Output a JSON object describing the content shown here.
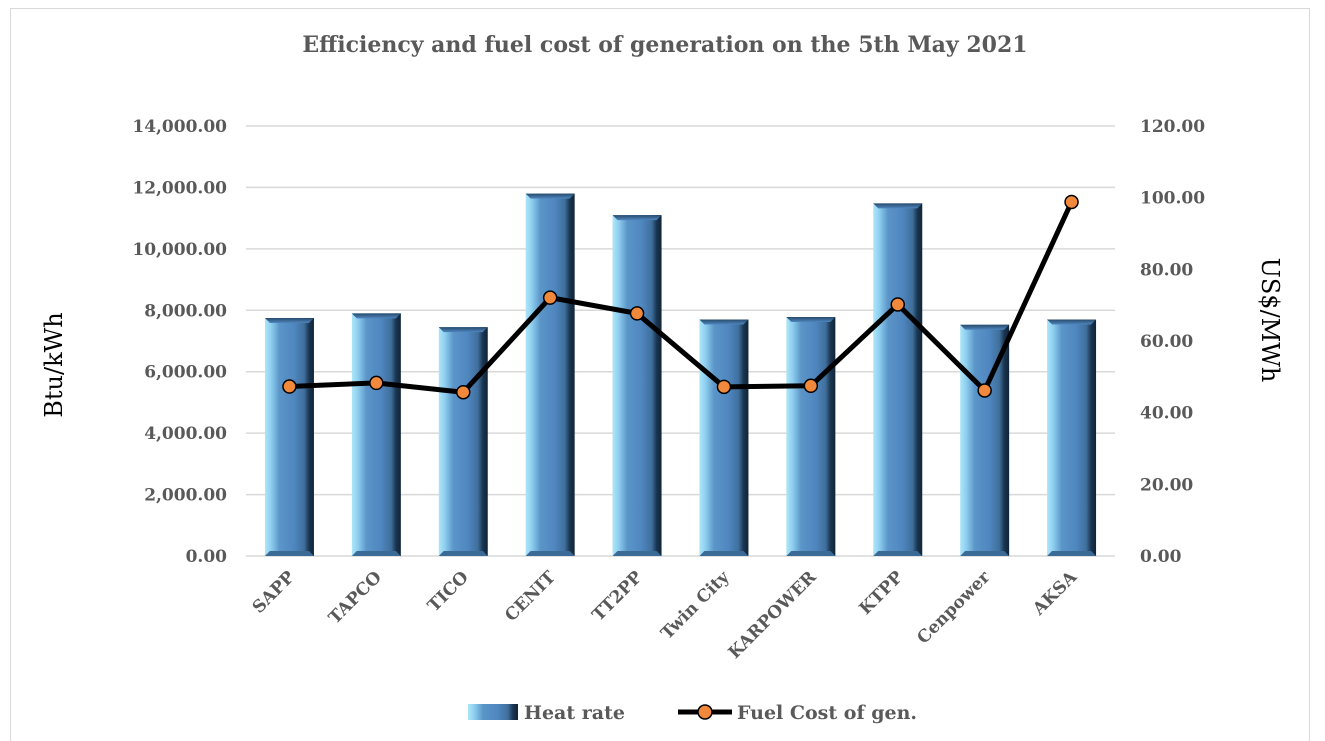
{
  "chart_data": {
    "type": "bar",
    "title": "Efficiency and fuel cost of generation on the 5th May 2021",
    "categories": [
      "SAPP",
      "TAPCO",
      "TICO",
      "CENIT",
      "TT2PP",
      "Twin City",
      "KARPOWER",
      "KTPP",
      "Cenpower",
      "AKSA"
    ],
    "series": [
      {
        "name": "Heat rate",
        "type": "bar",
        "axis": "left",
        "values": [
          7750,
          7900,
          7450,
          11800,
          11100,
          7700,
          7780,
          11480,
          7530,
          7700
        ]
      },
      {
        "name": "Fuel Cost of gen.",
        "type": "line",
        "axis": "right",
        "values": [
          47.3,
          48.3,
          45.7,
          72.1,
          67.7,
          47.2,
          47.5,
          70.2,
          46.2,
          98.8
        ]
      }
    ],
    "ylabel_left": "Btu/kWh",
    "ylabel_right": "US$/MWh",
    "xlabel": "",
    "ylim_left": [
      0,
      14000
    ],
    "ylim_right": [
      0,
      120
    ],
    "yticks_left": [
      "0.00",
      "2,000.00",
      "4,000.00",
      "6,000.00",
      "8,000.00",
      "10,000.00",
      "12,000.00",
      "14,000.00"
    ],
    "yticks_right": [
      "0.00",
      "20.00",
      "40.00",
      "60.00",
      "80.00",
      "100.00",
      "120.00"
    ],
    "grid": true,
    "legend_position": "bottom",
    "colors": {
      "bar_main": "#4f86bf",
      "bar_light": "#aee6f8",
      "bar_dark": "#0f2538",
      "line": "#000000",
      "marker": "#f0893b",
      "text": "#595959",
      "grid": "#d9d9d9"
    }
  }
}
